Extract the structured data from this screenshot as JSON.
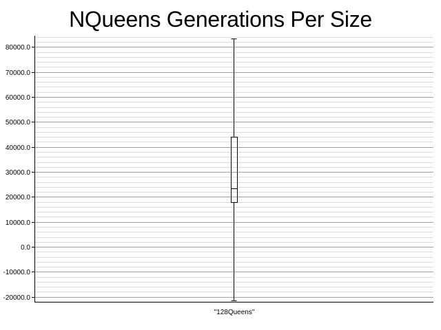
{
  "chart_data": {
    "type": "box",
    "title": "NQueens Generations Per Size",
    "xlabel": "",
    "ylabel": "",
    "categories": [
      "\"128Queens\""
    ],
    "boxes": [
      {
        "category": "\"128Queens\"",
        "whisker_low": -21500,
        "q1": 18000,
        "median": 23500,
        "q3": 44000,
        "whisker_high": 83500
      }
    ],
    "ylim": [
      -22000,
      84500
    ],
    "yticks": [
      -20000,
      -10000,
      0,
      10000,
      20000,
      30000,
      40000,
      50000,
      60000,
      70000,
      80000
    ],
    "ytick_labels": [
      "-20000.0",
      "-10000.0",
      "0.0",
      "10000.0",
      "20000.0",
      "30000.0",
      "40000.0",
      "50000.0",
      "60000.0",
      "70000.0",
      "80000.0"
    ],
    "minor_grid_step": 2000,
    "grid": true,
    "colors": {
      "major_grid": "#a0a0a0",
      "minor_grid": "#d9d9d9",
      "axis": "#000000",
      "box": "#000000"
    }
  }
}
